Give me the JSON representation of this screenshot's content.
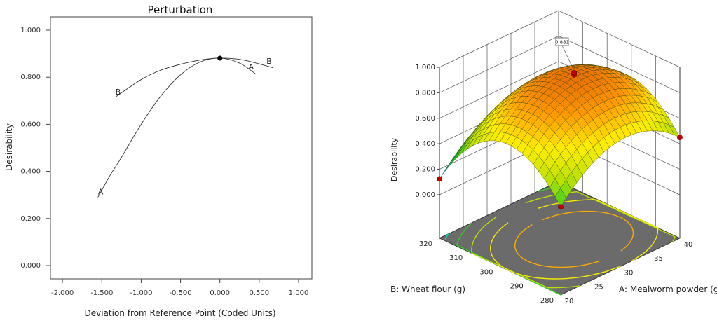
{
  "chart_data": [
    {
      "type": "line",
      "title": "Perturbation",
      "xlabel": "Deviation from Reference Point (Coded Units)",
      "ylabel": "Desirability",
      "xlim": [
        -2.2,
        1.2
      ],
      "ylim": [
        -0.05,
        1.08
      ],
      "xticks": [
        "-2.000",
        "-1.500",
        "-1.000",
        "-0.500",
        "0.000",
        "0.500",
        "1.000"
      ],
      "yticks": [
        "0.000",
        "0.200",
        "0.400",
        "0.600",
        "0.800",
        "1.000"
      ],
      "grid": false,
      "reference_point": {
        "x": 0,
        "y": 0.881
      },
      "series": [
        {
          "name": "A",
          "x": [
            -1.55,
            -1.4,
            -1.25,
            -1.0,
            -0.75,
            -0.5,
            -0.25,
            0,
            0.25,
            0.45
          ],
          "y": [
            0.29,
            0.38,
            0.46,
            0.6,
            0.72,
            0.81,
            0.865,
            0.881,
            0.86,
            0.815
          ]
        },
        {
          "name": "B",
          "x": [
            -1.33,
            -1.0,
            -0.75,
            -0.5,
            -0.25,
            0,
            0.3,
            0.68
          ],
          "y": [
            0.715,
            0.79,
            0.83,
            0.855,
            0.873,
            0.881,
            0.873,
            0.84
          ]
        }
      ]
    },
    {
      "type": "surface",
      "zlabel": "Desirability",
      "xlabel": "A: Mealworm powder (g)",
      "ylabel": "B: Wheat flour (g)",
      "xticks": [
        "20",
        "25",
        "30",
        "35",
        "40"
      ],
      "yticks": [
        "280",
        "290",
        "300",
        "310",
        "320"
      ],
      "zticks": [
        "0.000",
        "0.200",
        "0.400",
        "0.600",
        "0.800",
        "1.000"
      ],
      "xlim": [
        20,
        40
      ],
      "ylim": [
        280,
        320
      ],
      "zlim": [
        0,
        1
      ],
      "peak_flag": "0.881",
      "colormap": [
        "#1e90ff",
        "#00e5ee",
        "#22cc22",
        "#b8e000",
        "#ffee00",
        "#ff9900",
        "#e06000"
      ],
      "floor_color": "#6b6b6b",
      "design_point_color": "#c00000"
    }
  ]
}
